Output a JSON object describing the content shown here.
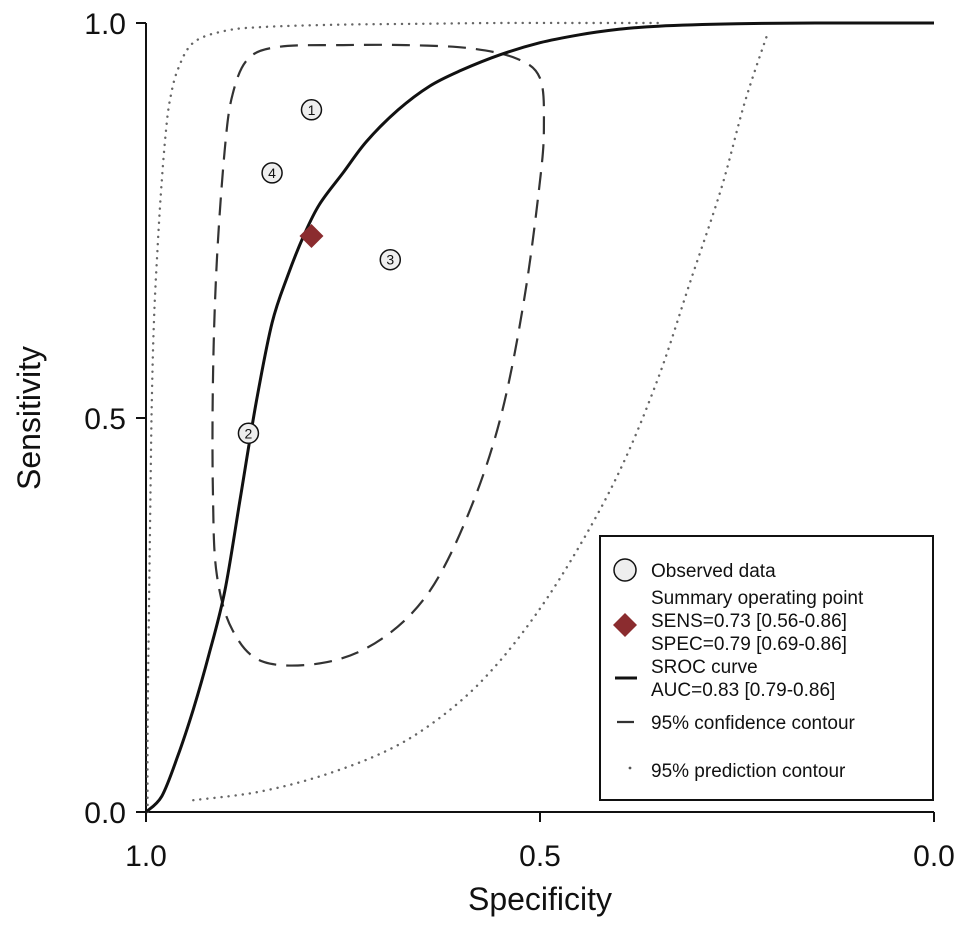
{
  "chart_data": {
    "type": "scatter",
    "xlabel": "Specificity",
    "ylabel": "Sensitivity",
    "x_reversed": true,
    "xlim": [
      1.0,
      0.0
    ],
    "ylim": [
      0.0,
      1.0
    ],
    "x_ticks": [
      "1.0",
      "0.5",
      "0.0"
    ],
    "y_ticks": [
      "0.0",
      "0.5",
      "1.0"
    ],
    "grid": false,
    "legend_position": "bottom-right",
    "observed_data": [
      {
        "label": "1",
        "specificity": 0.79,
        "sensitivity": 0.89
      },
      {
        "label": "2",
        "specificity": 0.87,
        "sensitivity": 0.48
      },
      {
        "label": "3",
        "specificity": 0.69,
        "sensitivity": 0.7
      },
      {
        "label": "4",
        "specificity": 0.84,
        "sensitivity": 0.81
      }
    ],
    "summary_point": {
      "specificity": 0.79,
      "sensitivity": 0.73,
      "color": "#8b2c2f"
    },
    "sroc_curve": [
      [
        1.0,
        0.0
      ],
      [
        0.98,
        0.02
      ],
      [
        0.96,
        0.07
      ],
      [
        0.94,
        0.13
      ],
      [
        0.92,
        0.2
      ],
      [
        0.9,
        0.28
      ],
      [
        0.88,
        0.4
      ],
      [
        0.86,
        0.52
      ],
      [
        0.84,
        0.62
      ],
      [
        0.82,
        0.68
      ],
      [
        0.8,
        0.73
      ],
      [
        0.78,
        0.77
      ],
      [
        0.75,
        0.81
      ],
      [
        0.72,
        0.85
      ],
      [
        0.68,
        0.89
      ],
      [
        0.64,
        0.92
      ],
      [
        0.6,
        0.94
      ],
      [
        0.55,
        0.96
      ],
      [
        0.5,
        0.975
      ],
      [
        0.45,
        0.985
      ],
      [
        0.4,
        0.992
      ],
      [
        0.35,
        0.996
      ],
      [
        0.25,
        0.999
      ],
      [
        0.15,
        1.0
      ],
      [
        0.0,
        1.0
      ]
    ],
    "confidence_contour": [
      [
        0.83,
        0.97
      ],
      [
        0.75,
        0.972
      ],
      [
        0.67,
        0.972
      ],
      [
        0.59,
        0.968
      ],
      [
        0.53,
        0.955
      ],
      [
        0.5,
        0.93
      ],
      [
        0.495,
        0.87
      ],
      [
        0.5,
        0.8
      ],
      [
        0.52,
        0.65
      ],
      [
        0.55,
        0.5
      ],
      [
        0.59,
        0.38
      ],
      [
        0.64,
        0.28
      ],
      [
        0.7,
        0.22
      ],
      [
        0.77,
        0.19
      ],
      [
        0.85,
        0.19
      ],
      [
        0.89,
        0.23
      ],
      [
        0.91,
        0.3
      ],
      [
        0.915,
        0.4
      ],
      [
        0.915,
        0.55
      ],
      [
        0.91,
        0.7
      ],
      [
        0.9,
        0.84
      ],
      [
        0.89,
        0.91
      ],
      [
        0.87,
        0.955
      ],
      [
        0.83,
        0.97
      ]
    ],
    "prediction_contour_upper": [
      [
        0.998,
        0.0
      ],
      [
        0.998,
        0.1
      ],
      [
        0.997,
        0.2
      ],
      [
        0.995,
        0.35
      ],
      [
        0.993,
        0.5
      ],
      [
        0.99,
        0.62
      ],
      [
        0.985,
        0.72
      ],
      [
        0.98,
        0.8
      ],
      [
        0.975,
        0.86
      ],
      [
        0.97,
        0.9
      ],
      [
        0.96,
        0.94
      ],
      [
        0.94,
        0.975
      ],
      [
        0.9,
        0.99
      ],
      [
        0.85,
        0.995
      ],
      [
        0.75,
        0.998
      ],
      [
        0.65,
        0.999
      ],
      [
        0.55,
        1.0
      ],
      [
        0.45,
        1.0
      ],
      [
        0.35,
        1.0
      ]
    ],
    "prediction_contour_lower": [
      [
        0.94,
        0.015
      ],
      [
        0.86,
        0.025
      ],
      [
        0.78,
        0.045
      ],
      [
        0.7,
        0.075
      ],
      [
        0.64,
        0.11
      ],
      [
        0.58,
        0.16
      ],
      [
        0.52,
        0.23
      ],
      [
        0.46,
        0.32
      ],
      [
        0.4,
        0.43
      ],
      [
        0.35,
        0.55
      ],
      [
        0.31,
        0.67
      ],
      [
        0.27,
        0.79
      ],
      [
        0.24,
        0.9
      ],
      [
        0.21,
        0.99
      ]
    ],
    "legend": [
      {
        "type": "circle",
        "lines": [
          "Observed data"
        ]
      },
      {
        "type": "diamond",
        "lines": [
          "Summary operating point",
          "SENS=0.73 [0.56-0.86]",
          "SPEC=0.79 [0.69-0.86]"
        ]
      },
      {
        "type": "solid",
        "lines": [
          "SROC curve",
          "AUC=0.83 [0.79-0.86]"
        ]
      },
      {
        "type": "dashed",
        "lines": [
          "95% confidence contour"
        ]
      },
      {
        "type": "dotted",
        "lines": [
          "95% prediction contour"
        ]
      }
    ]
  }
}
